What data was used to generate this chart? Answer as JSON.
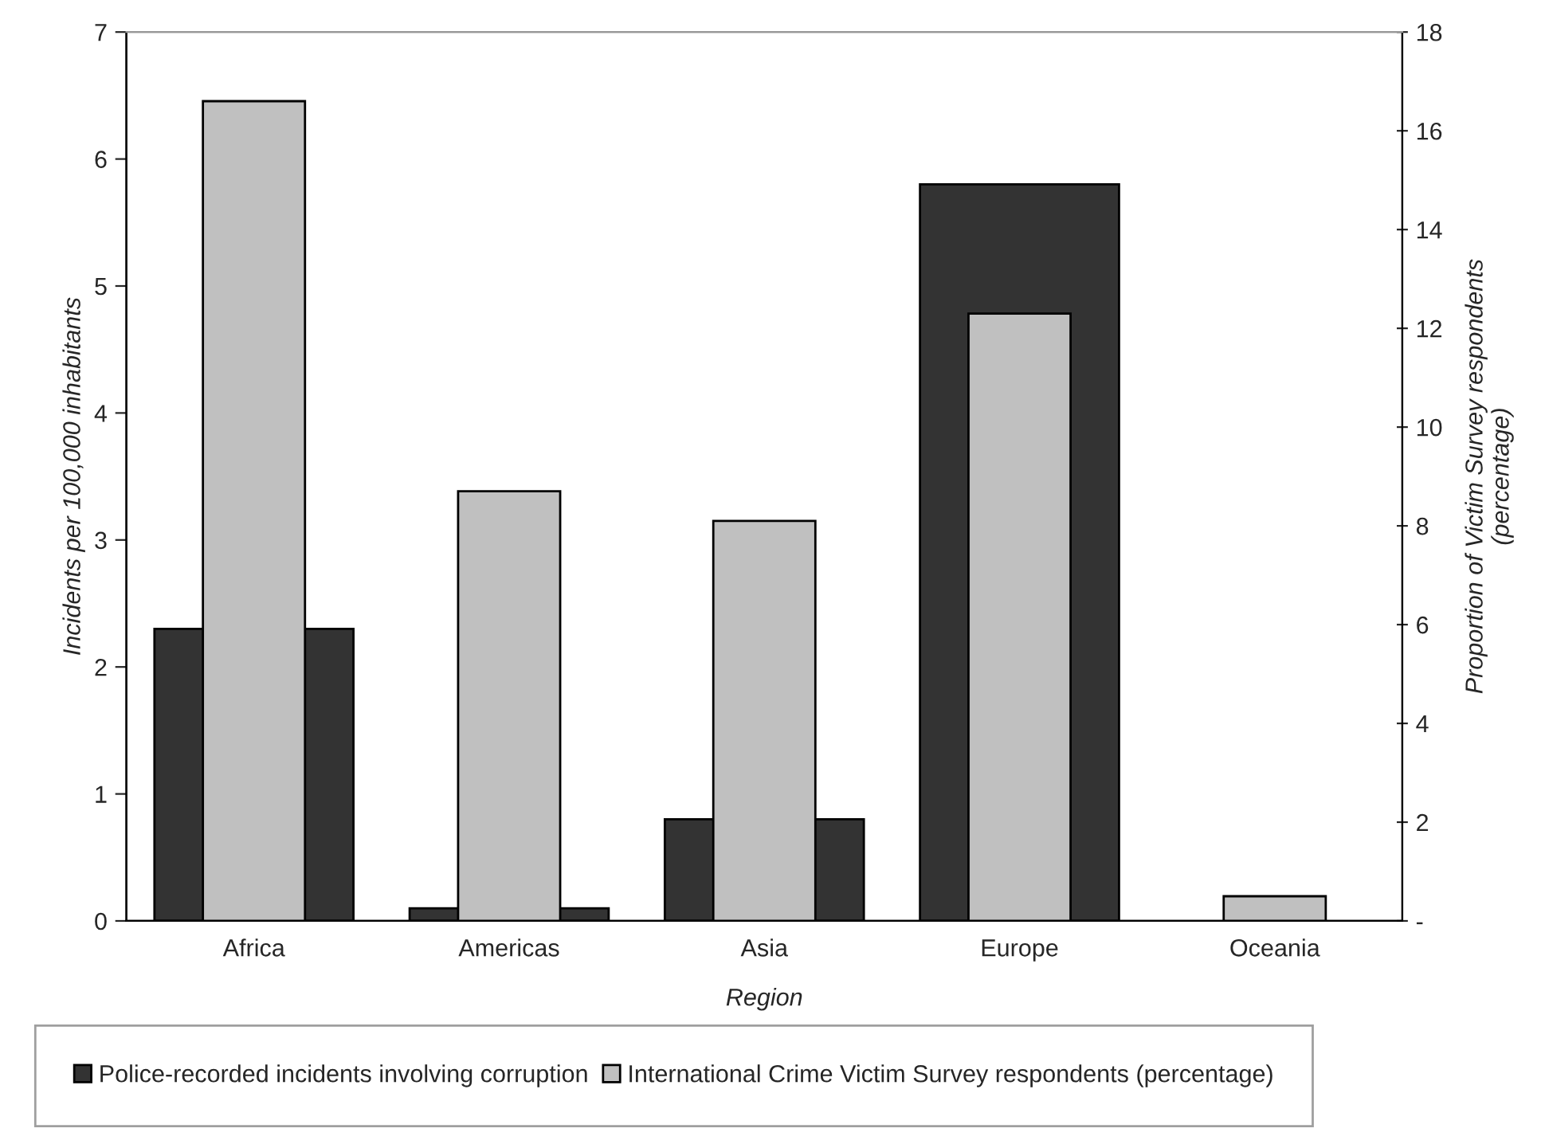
{
  "chart_data": {
    "type": "bar",
    "xlabel": "Region",
    "ylabel": "Incidents per 100,000 inhabitants",
    "y2label": "Proportion of Victim Survey respondents\n(percentage)",
    "categories": [
      "Africa",
      "Americas",
      "Asia",
      "Europe",
      "Oceania"
    ],
    "series": [
      {
        "name": "Police-recorded incidents involving corruption",
        "color": "#333333",
        "values": [
          2.3,
          0.1,
          0.8,
          5.8,
          null
        ]
      },
      {
        "name": "International Crime Victim Survey respondents (percentage)",
        "color": "#c0c0c0",
        "axis": "y2",
        "values": [
          16.6,
          8.7,
          8.1,
          12.3,
          0.5
        ]
      }
    ],
    "ylim": [
      0,
      7
    ],
    "yticks": [
      0,
      1,
      2,
      3,
      4,
      5,
      6,
      7
    ],
    "y2lim": [
      0,
      18
    ],
    "y2ticks": [
      {
        "value": 0,
        "label": "-"
      },
      2,
      4,
      6,
      8,
      10,
      12,
      14,
      16,
      18
    ],
    "grid": false,
    "legend": "bottom"
  }
}
